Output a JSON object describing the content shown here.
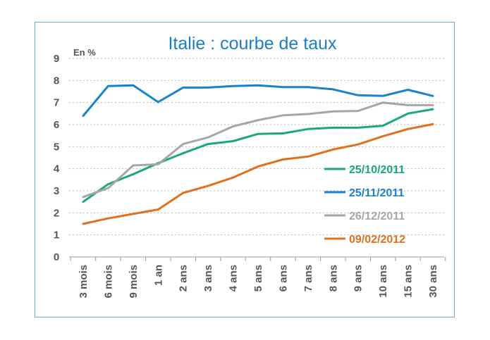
{
  "chart_data": {
    "type": "line",
    "title": "Italie : courbe de taux",
    "ylabel": "En %",
    "xlabel": "",
    "ylim": [
      0,
      9
    ],
    "yticks": [
      "0",
      "1",
      "2",
      "3",
      "4",
      "5",
      "6",
      "7",
      "8",
      "9"
    ],
    "categories": [
      "3 mois",
      "6 mois",
      "9 mois",
      "1 an",
      "2 ans",
      "3 ans",
      "4 ans",
      "5 ans",
      "6 ans",
      "7 ans",
      "8 ans",
      "9 ans",
      "10 ans",
      "15 ans",
      "30 ans"
    ],
    "grid": true,
    "legend_position": "right",
    "series": [
      {
        "name": "25/10/2011",
        "color": "#1aa87a",
        "values": [
          2.5,
          3.3,
          3.75,
          4.25,
          4.7,
          5.12,
          5.25,
          5.58,
          5.6,
          5.8,
          5.86,
          5.86,
          5.95,
          6.5,
          6.7
        ]
      },
      {
        "name": "25/11/2011",
        "color": "#1a82c8",
        "values": [
          6.4,
          7.75,
          7.78,
          7.02,
          7.68,
          7.68,
          7.75,
          7.78,
          7.7,
          7.7,
          7.6,
          7.33,
          7.3,
          7.58,
          7.3
        ]
      },
      {
        "name": "26/12/2011",
        "color": "#a6a6a6",
        "values": [
          2.72,
          3.12,
          4.15,
          4.2,
          5.12,
          5.42,
          5.92,
          6.2,
          6.42,
          6.48,
          6.6,
          6.62,
          7.0,
          6.88,
          6.88
        ]
      },
      {
        "name": "09/02/2012",
        "color": "#e0701c",
        "values": [
          1.5,
          1.75,
          1.95,
          2.15,
          2.9,
          3.22,
          3.6,
          4.1,
          4.42,
          4.55,
          4.87,
          5.1,
          5.47,
          5.8,
          6.02
        ]
      }
    ]
  }
}
